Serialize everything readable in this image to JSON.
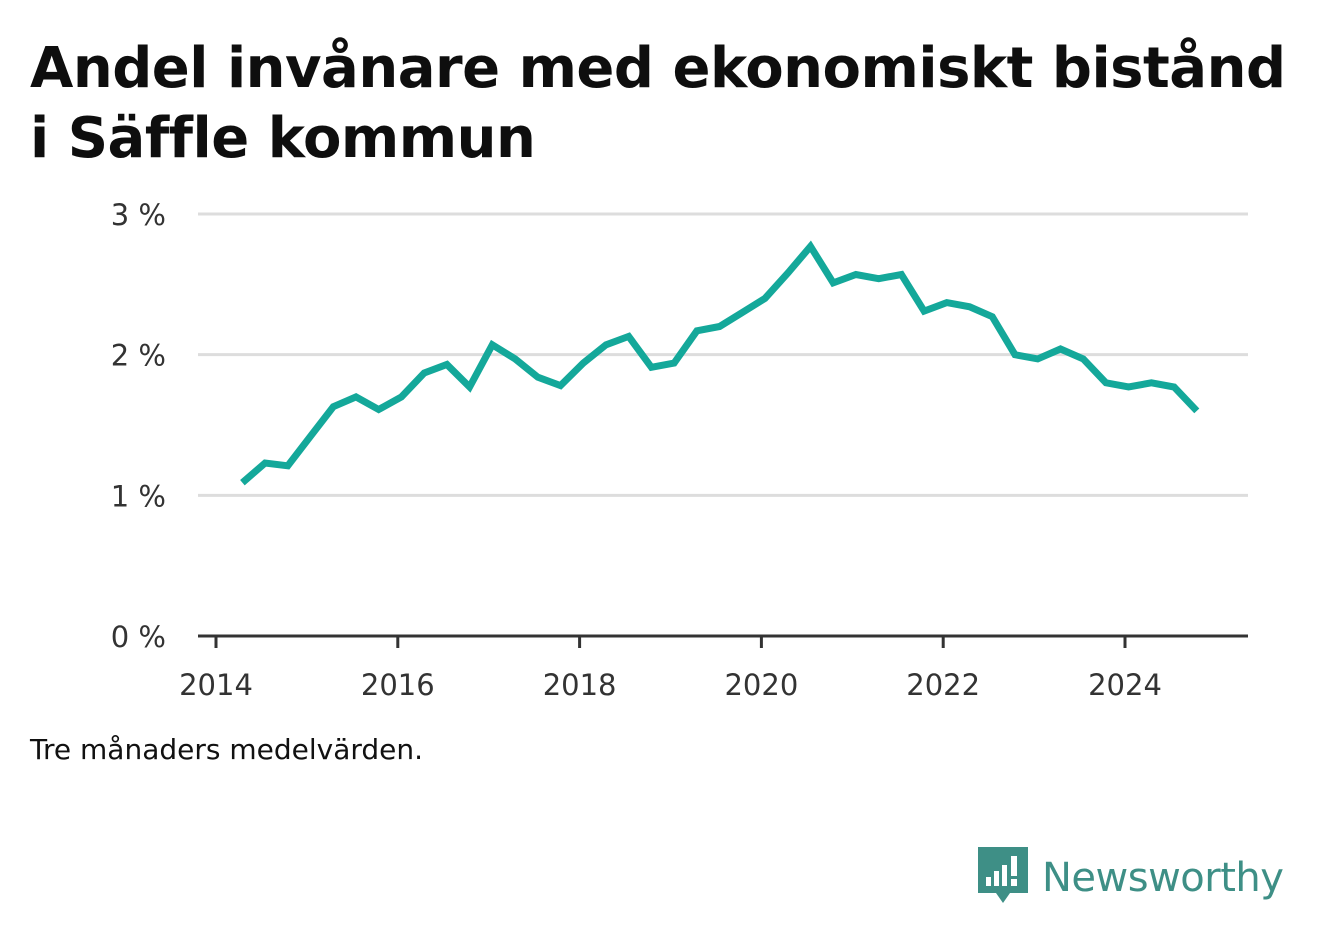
{
  "title": "Andel invånare med ekonomiskt bistånd i Säffle kommun",
  "note": "Tre månaders medelvärden.",
  "brand": {
    "name": "Newsworthy",
    "icon": "newsworthy-logo-icon",
    "color": "#3e8f86"
  },
  "colors": {
    "line": "#14a89a",
    "grid": "#dddddd",
    "axis": "#333333"
  },
  "chart_data": {
    "type": "line",
    "title": "Andel invånare med ekonomiskt bistånd i Säffle kommun",
    "xlabel": "",
    "ylabel": "",
    "xlim": [
      2013.8,
      2025.5
    ],
    "ylim": [
      0,
      3
    ],
    "y_ticks": [
      0,
      1,
      2,
      3
    ],
    "y_tick_labels": [
      "0 %",
      "1 %",
      "2 %",
      "3 %"
    ],
    "x_ticks": [
      2014,
      2016,
      2018,
      2020,
      2022,
      2024
    ],
    "x_tick_labels": [
      "2014",
      "2016",
      "2018",
      "2020",
      "2022",
      "2024"
    ],
    "grid": true,
    "legend": "none",
    "series": [
      {
        "x": [
          2014.29,
          2014.54,
          2014.79,
          2015.04,
          2015.29,
          2015.54,
          2015.79,
          2016.04,
          2016.29,
          2016.54,
          2016.79,
          2017.04,
          2017.29,
          2017.54,
          2017.79,
          2018.04,
          2018.29,
          2018.54,
          2018.79,
          2019.04,
          2019.29,
          2019.54,
          2019.79,
          2020.04,
          2020.29,
          2020.54,
          2020.79,
          2021.04,
          2021.29,
          2021.54,
          2021.79,
          2022.04,
          2022.29,
          2022.54,
          2022.79,
          2023.04,
          2023.29,
          2023.54,
          2023.79,
          2024.04,
          2024.29,
          2024.54,
          2024.79
        ],
        "values": [
          1.09,
          1.23,
          1.21,
          1.42,
          1.63,
          1.7,
          1.61,
          1.7,
          1.87,
          1.93,
          1.77,
          2.07,
          1.97,
          1.84,
          1.78,
          1.94,
          2.07,
          2.13,
          1.91,
          1.94,
          2.17,
          2.2,
          2.3,
          2.4,
          2.58,
          2.77,
          2.51,
          2.57,
          2.54,
          2.57,
          2.31,
          2.37,
          2.34,
          2.27,
          2.0,
          1.97,
          2.04,
          1.97,
          1.8,
          1.77,
          1.8,
          1.77,
          1.6
        ]
      }
    ]
  }
}
